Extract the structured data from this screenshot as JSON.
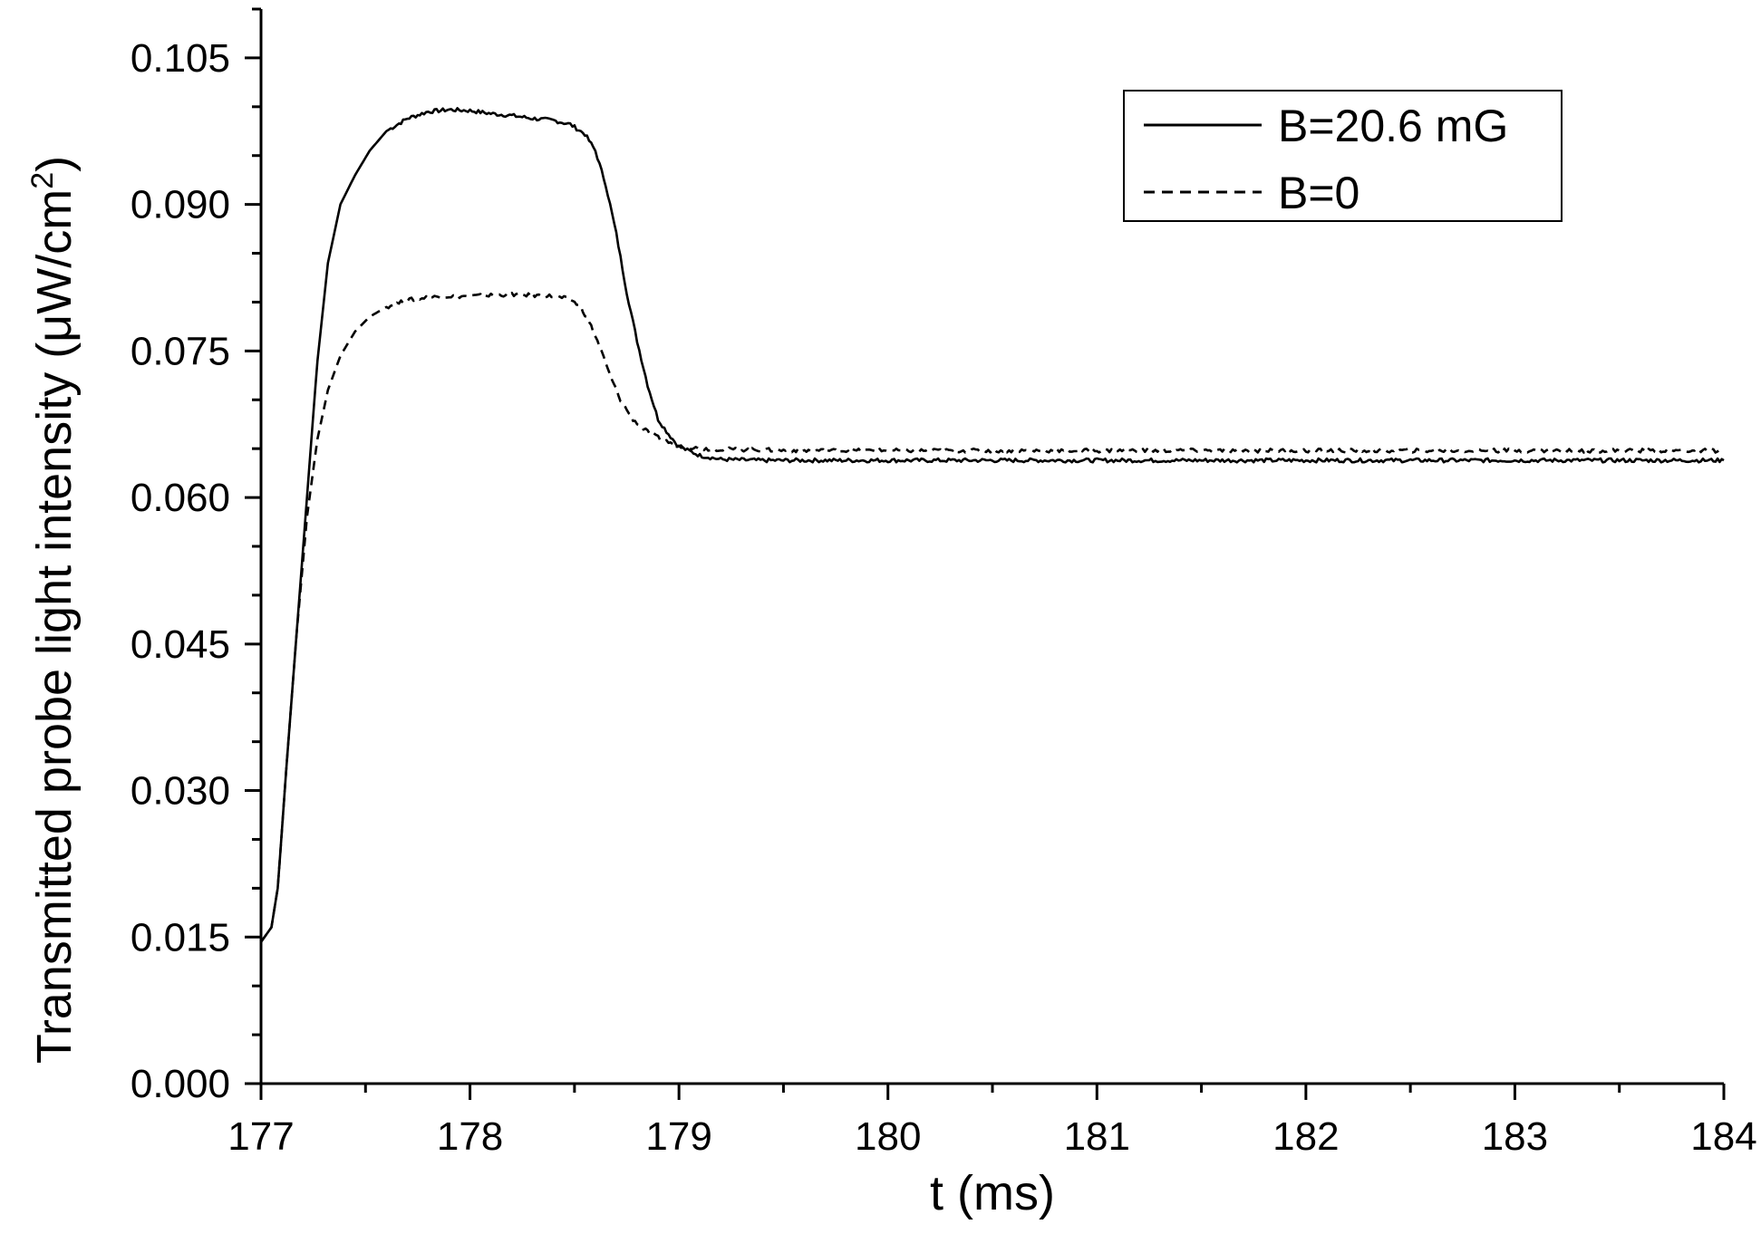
{
  "chart_data": {
    "type": "line",
    "xlabel": "t (ms)",
    "ylabel": "Transmitted probe light intensity (μW/cm²)",
    "ylabel_parts": {
      "main": "Transmitted probe light intensity (",
      "mu": "μ",
      "unit": "W/cm",
      "sup": "2",
      "close": ")"
    },
    "xlim": [
      177,
      184
    ],
    "ylim": [
      0.0,
      0.11
    ],
    "x_ticks": [
      177,
      178,
      179,
      180,
      181,
      182,
      183,
      184
    ],
    "x_tick_labels": [
      "177",
      "178",
      "179",
      "180",
      "181",
      "182",
      "183",
      "184"
    ],
    "y_ticks": [
      0.0,
      0.015,
      0.03,
      0.045,
      0.06,
      0.075,
      0.09,
      0.105
    ],
    "y_tick_labels": [
      "0.000",
      "0.015",
      "0.030",
      "0.045",
      "0.060",
      "0.075",
      "0.090",
      "0.105"
    ],
    "grid": false,
    "legend_position": "top-right",
    "series": [
      {
        "name": "B=20.6 mG",
        "style": "solid",
        "color": "#000000",
        "points": [
          [
            177.0,
            0.0145
          ],
          [
            177.05,
            0.016
          ],
          [
            177.08,
            0.02
          ],
          [
            177.12,
            0.032
          ],
          [
            177.17,
            0.046
          ],
          [
            177.22,
            0.06
          ],
          [
            177.27,
            0.074
          ],
          [
            177.32,
            0.084
          ],
          [
            177.38,
            0.09
          ],
          [
            177.45,
            0.093
          ],
          [
            177.52,
            0.0955
          ],
          [
            177.6,
            0.0975
          ],
          [
            177.7,
            0.0988
          ],
          [
            177.8,
            0.0995
          ],
          [
            177.9,
            0.0997
          ],
          [
            178.0,
            0.0996
          ],
          [
            178.1,
            0.0993
          ],
          [
            178.2,
            0.0991
          ],
          [
            178.3,
            0.0988
          ],
          [
            178.4,
            0.0986
          ],
          [
            178.48,
            0.0982
          ],
          [
            178.55,
            0.0972
          ],
          [
            178.6,
            0.0955
          ],
          [
            178.65,
            0.092
          ],
          [
            178.7,
            0.087
          ],
          [
            178.75,
            0.081
          ],
          [
            178.8,
            0.076
          ],
          [
            178.85,
            0.0715
          ],
          [
            178.9,
            0.068
          ],
          [
            178.95,
            0.0665
          ],
          [
            179.0,
            0.0652
          ],
          [
            179.1,
            0.0643
          ],
          [
            179.2,
            0.0639
          ],
          [
            179.4,
            0.0638
          ],
          [
            179.6,
            0.0638
          ],
          [
            179.8,
            0.0638
          ],
          [
            180.0,
            0.0638
          ],
          [
            180.5,
            0.0638
          ],
          [
            181.0,
            0.0638
          ],
          [
            181.5,
            0.0638
          ],
          [
            182.0,
            0.0638
          ],
          [
            182.5,
            0.0638
          ],
          [
            183.0,
            0.0638
          ],
          [
            183.5,
            0.0638
          ],
          [
            184.0,
            0.0638
          ]
        ]
      },
      {
        "name": "B=0",
        "style": "dashed",
        "color": "#000000",
        "points": [
          [
            177.0,
            0.0145
          ],
          [
            177.05,
            0.016
          ],
          [
            177.08,
            0.02
          ],
          [
            177.12,
            0.032
          ],
          [
            177.17,
            0.046
          ],
          [
            177.22,
            0.058
          ],
          [
            177.27,
            0.066
          ],
          [
            177.32,
            0.071
          ],
          [
            177.38,
            0.0745
          ],
          [
            177.45,
            0.077
          ],
          [
            177.52,
            0.0785
          ],
          [
            177.6,
            0.0795
          ],
          [
            177.7,
            0.0802
          ],
          [
            177.8,
            0.0805
          ],
          [
            177.9,
            0.0806
          ],
          [
            178.0,
            0.0806
          ],
          [
            178.1,
            0.0807
          ],
          [
            178.2,
            0.0808
          ],
          [
            178.3,
            0.0807
          ],
          [
            178.4,
            0.0806
          ],
          [
            178.48,
            0.0803
          ],
          [
            178.53,
            0.0795
          ],
          [
            178.57,
            0.078
          ],
          [
            178.62,
            0.0755
          ],
          [
            178.67,
            0.0725
          ],
          [
            178.72,
            0.07
          ],
          [
            178.78,
            0.068
          ],
          [
            178.85,
            0.0667
          ],
          [
            178.92,
            0.0659
          ],
          [
            179.0,
            0.0653
          ],
          [
            179.1,
            0.065
          ],
          [
            179.3,
            0.0649
          ],
          [
            179.6,
            0.0648
          ],
          [
            180.0,
            0.0648
          ],
          [
            180.5,
            0.0648
          ],
          [
            181.0,
            0.0648
          ],
          [
            181.5,
            0.0648
          ],
          [
            182.0,
            0.0648
          ],
          [
            182.5,
            0.0648
          ],
          [
            183.0,
            0.0648
          ],
          [
            183.5,
            0.0648
          ],
          [
            184.0,
            0.0648
          ]
        ]
      }
    ]
  }
}
